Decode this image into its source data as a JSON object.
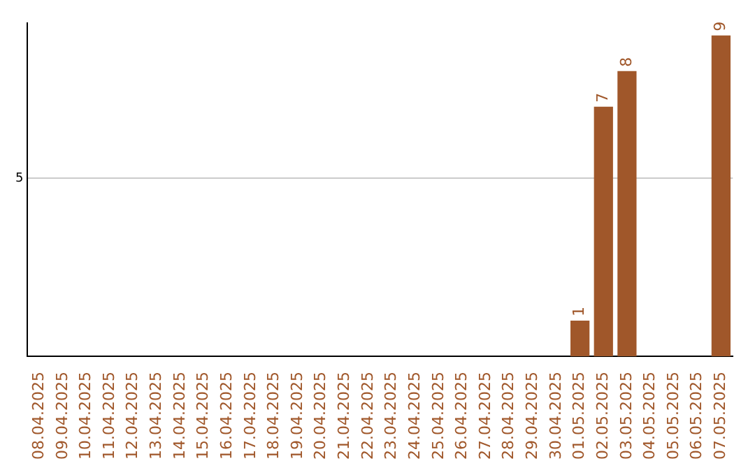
{
  "chart_data": {
    "type": "bar",
    "categories": [
      "08.04.2025",
      "09.04.2025",
      "10.04.2025",
      "11.04.2025",
      "12.04.2025",
      "13.04.2025",
      "14.04.2025",
      "15.04.2025",
      "16.04.2025",
      "17.04.2025",
      "18.04.2025",
      "19.04.2025",
      "20.04.2025",
      "21.04.2025",
      "22.04.2025",
      "23.04.2025",
      "24.04.2025",
      "25.04.2025",
      "26.04.2025",
      "27.04.2025",
      "28.04.2025",
      "29.04.2025",
      "30.04.2025",
      "01.05.2025",
      "02.05.2025",
      "03.05.2025",
      "04.05.2025",
      "05.05.2025",
      "06.05.2025",
      "07.05.2025"
    ],
    "values": [
      null,
      null,
      null,
      null,
      null,
      null,
      null,
      null,
      null,
      null,
      null,
      null,
      null,
      null,
      null,
      null,
      null,
      null,
      null,
      null,
      null,
      null,
      null,
      1,
      7,
      8,
      null,
      null,
      null,
      9
    ],
    "color": "#a0572a",
    "ylim": [
      0,
      9.35
    ],
    "yticks": [
      5
    ],
    "grid": "y",
    "data_labels": true,
    "legend": false
  }
}
